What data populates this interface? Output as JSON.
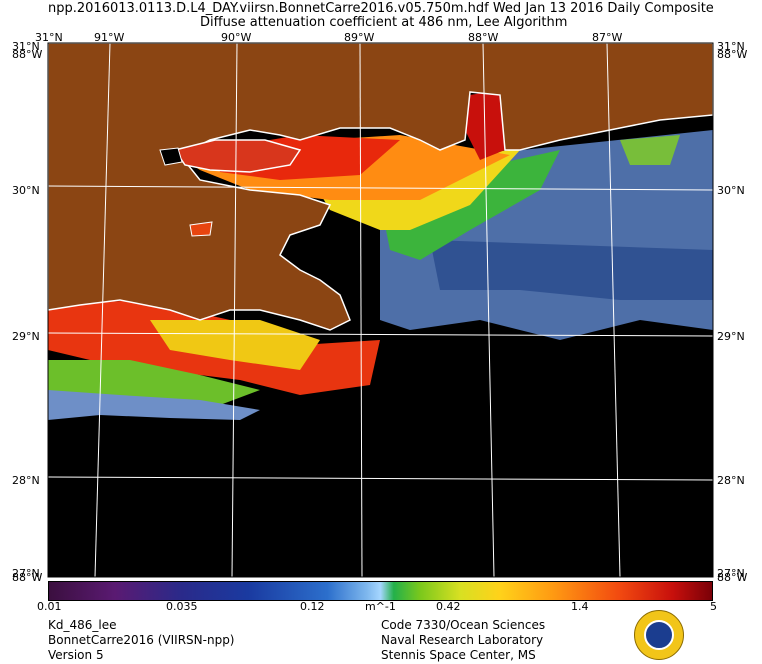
{
  "header": {
    "line1": "npp.2016013.0113.D.L4_DAY.viirsn.BonnetCarre2016.v05.750m.hdf     Wed Jan 13 2016 Daily Composite",
    "line2": "Diffuse attenuation coefficient at 486 nm, Lee Algorithm"
  },
  "map": {
    "lon_labels": [
      "91°W",
      "90°W",
      "89°W",
      "88°W",
      "87°W"
    ],
    "lat_labels_left": [
      "31°N",
      "30°N",
      "29°N",
      "28°N",
      "27°N"
    ],
    "lat_labels_right": [
      "31°N",
      "30°N",
      "29°N",
      "28°N",
      "27°N"
    ],
    "corner_overlap_label": "88°W",
    "colors": {
      "land": "#8b4513",
      "no_data": "#000000",
      "coast": "#ffffff",
      "grid": "#ffffff"
    }
  },
  "colorbar": {
    "ticks": [
      "0.01",
      "0.035",
      "0.12",
      "m^-1",
      "0.42",
      "1.4",
      "5"
    ]
  },
  "footer": {
    "left": [
      "Kd_486_lee",
      "BonnetCarre2016 (VIIRSN-npp)",
      "Version 5"
    ],
    "right": [
      "Code 7330/Ocean Sciences",
      "Naval Research Laboratory",
      "Stennis Space Center, MS"
    ]
  }
}
